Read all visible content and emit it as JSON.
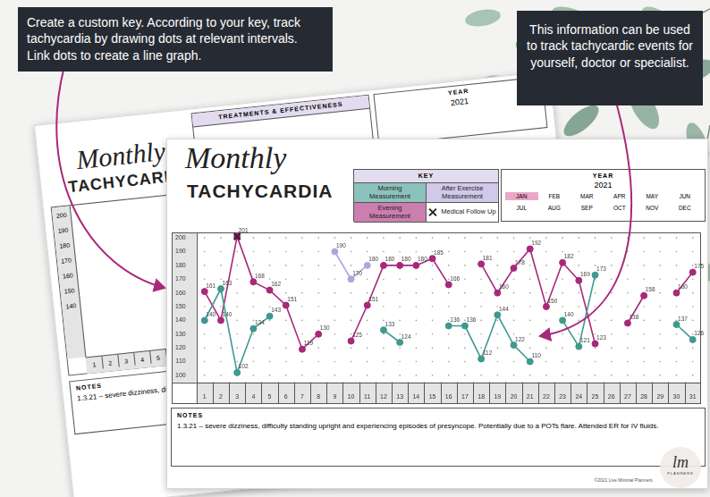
{
  "callouts": {
    "left": "Create a custom key. According to your key, track tachycardia by drawing dots at relevant intervals. Link dots to create a line graph.",
    "right": "This information can be used to track tachycardic events for yourself, doctor or specialist."
  },
  "back_sheet": {
    "title_script": "Monthly",
    "title": "TACHYCARDIA",
    "section": "TREATMENTS & EFFECTIVENESS",
    "year_label": "YEAR",
    "year": "2021",
    "yticks": [
      200,
      190,
      180,
      170,
      160,
      150,
      140
    ],
    "xticks": [
      1,
      2,
      3,
      4,
      5
    ],
    "notes_label": "NOTES",
    "notes": "1.3.21 – severe dizziness, di"
  },
  "sheet": {
    "title_script": "Monthly",
    "title": "TACHYCARDIA",
    "key_label": "KEY",
    "year_label": "YEAR",
    "year": "2021",
    "months": [
      "JAN",
      "FEB",
      "MAR",
      "APR",
      "MAY",
      "JUN",
      "JUL",
      "AUG",
      "SEP",
      "OCT",
      "NOV",
      "DEC"
    ],
    "selected_month": "JAN",
    "notes_label": "NOTES",
    "notes": "1.3.21 – severe dizziness, difficulty standing upright and experiencing episodes of presyncope. Potentially due to a POTs flare. Attended ER for IV fluids.",
    "footer": "©2021 Live Minimal Planners.",
    "logo": "lm",
    "logo_sub": "PLANNERS"
  },
  "chart_data": {
    "type": "line",
    "categories": [
      "1",
      "2",
      "3",
      "4",
      "5",
      "6",
      "7",
      "8",
      "9",
      "10",
      "11",
      "12",
      "13",
      "14",
      "15",
      "16",
      "17",
      "18",
      "19",
      "20",
      "21",
      "22",
      "23",
      "24",
      "25",
      "26",
      "27",
      "28",
      "29",
      "30",
      "31"
    ],
    "series": [
      {
        "name": "Morning Measurement",
        "color": "#3f9990",
        "marker": "circle",
        "values": [
          140,
          163,
          102,
          134,
          143,
          null,
          null,
          null,
          null,
          null,
          null,
          133,
          124,
          null,
          null,
          136,
          136,
          112,
          144,
          122,
          110,
          null,
          140,
          121,
          173,
          null,
          null,
          null,
          null,
          137,
          126
        ]
      },
      {
        "name": "After Exercise Measurement",
        "color": "#b1a5db",
        "marker": "circle",
        "values": [
          null,
          null,
          null,
          null,
          null,
          null,
          null,
          null,
          190,
          170,
          180,
          null,
          null,
          null,
          null,
          null,
          null,
          null,
          null,
          null,
          null,
          null,
          null,
          null,
          null,
          null,
          null,
          null,
          null,
          null,
          null
        ]
      },
      {
        "name": "Evening Measurement",
        "color": "#a8287a",
        "marker": "circle",
        "values": [
          161,
          140,
          201,
          168,
          162,
          151,
          119,
          130,
          null,
          125,
          151,
          180,
          180,
          180,
          185,
          166,
          null,
          181,
          160,
          178,
          192,
          150,
          182,
          169,
          123,
          null,
          138,
          158,
          null,
          160,
          175
        ]
      },
      {
        "name": "Medical Follow Up",
        "color": "#4a1a36",
        "marker": "cross",
        "line_style": "none",
        "data_labels": false,
        "values": [
          null,
          null,
          201,
          null,
          null,
          null,
          null,
          null,
          null,
          null,
          null,
          null,
          null,
          null,
          null,
          null,
          null,
          null,
          null,
          null,
          null,
          null,
          null,
          null,
          null,
          null,
          null,
          null,
          null,
          null,
          null
        ]
      }
    ],
    "ylim": [
      95,
      204
    ],
    "yticks": [
      100,
      110,
      120,
      130,
      140,
      150,
      160,
      170,
      180,
      190,
      200
    ],
    "grid": true,
    "data_labels": true
  }
}
